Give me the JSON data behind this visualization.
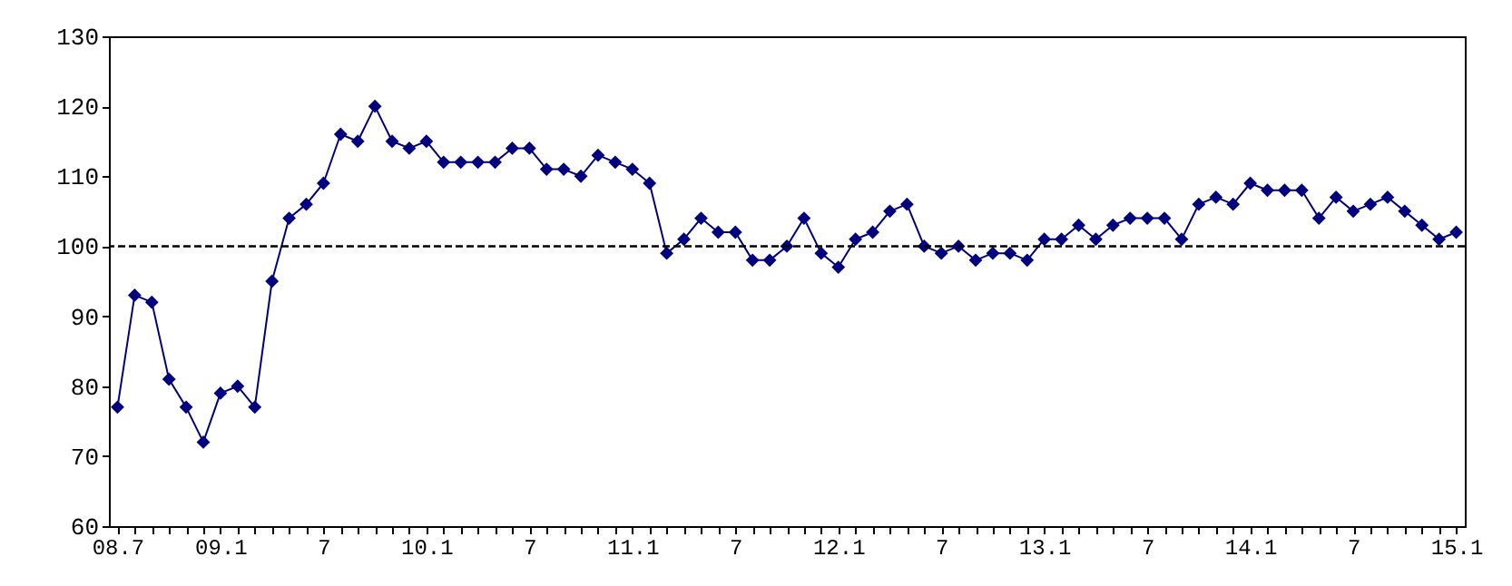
{
  "chart_data": {
    "type": "line",
    "categories": [
      "08.7",
      null,
      null,
      null,
      null,
      null,
      "09.1",
      null,
      null,
      null,
      null,
      null,
      "7",
      null,
      null,
      null,
      null,
      null,
      "10.1",
      null,
      null,
      null,
      null,
      null,
      "7",
      null,
      null,
      null,
      null,
      null,
      "11.1",
      null,
      null,
      null,
      null,
      null,
      "7",
      null,
      null,
      null,
      null,
      null,
      "12.1",
      null,
      null,
      null,
      null,
      null,
      "7",
      null,
      null,
      null,
      null,
      null,
      "13.1",
      null,
      null,
      null,
      null,
      null,
      "7",
      null,
      null,
      null,
      null,
      null,
      "14.1",
      null,
      null,
      null,
      null,
      null,
      "7",
      null,
      null,
      null,
      null,
      null,
      "15.1"
    ],
    "series": [
      {
        "color": "#00007f",
        "values": [
          77,
          93,
          92,
          81,
          77,
          72,
          79,
          80,
          77,
          95,
          104,
          106,
          109,
          116,
          115,
          120,
          115,
          114,
          115,
          112,
          112,
          112,
          112,
          114,
          114,
          111,
          111,
          110,
          113,
          112,
          111,
          109,
          99,
          101,
          104,
          102,
          102,
          98,
          98,
          100,
          104,
          99,
          97,
          101,
          102,
          105,
          106,
          100,
          99,
          100,
          98,
          99,
          99,
          98,
          101,
          101,
          103,
          101,
          103,
          104,
          104,
          104,
          101,
          106,
          107,
          106,
          109,
          108,
          108,
          108,
          104,
          107,
          105,
          106,
          107,
          105,
          103,
          101,
          102
        ]
      }
    ],
    "ylim": [
      60,
      130
    ],
    "yticks": [
      60,
      70,
      80,
      90,
      100,
      110,
      120,
      130
    ],
    "ref_lines": [
      {
        "axis": "y",
        "value": 100,
        "color": "#000000",
        "line_style": "dashed"
      }
    ],
    "marker": "diamond",
    "line_style": "solid",
    "grid": false
  }
}
